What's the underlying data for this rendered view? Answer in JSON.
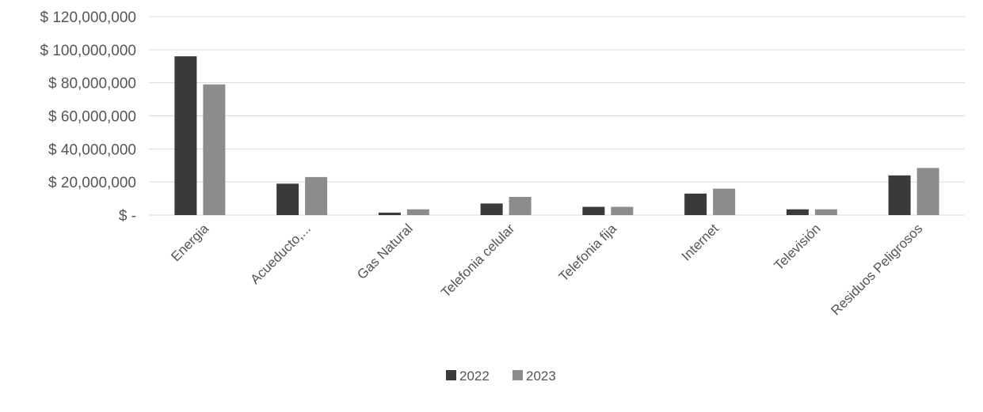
{
  "chart_data": {
    "type": "bar",
    "categories": [
      "Energia",
      "Acueducto,...",
      "Gas Natural",
      "Telefonia celular",
      "Telefonia fija",
      "Internet",
      "Televisión",
      "Residuos Peligrosos"
    ],
    "series": [
      {
        "name": "2022",
        "color": "#3a3a3a",
        "values": [
          96000000,
          19000000,
          1500000,
          7000000,
          5000000,
          13000000,
          3500000,
          24000000
        ]
      },
      {
        "name": "2023",
        "color": "#8c8c8c",
        "values": [
          79000000,
          23000000,
          3500000,
          11000000,
          5000000,
          16000000,
          3500000,
          28500000
        ]
      }
    ],
    "y_tick_labels": [
      "$ -",
      "$ 20,000,000",
      "$ 40,000,000",
      "$ 60,000,000",
      "$ 80,000,000",
      "$ 100,000,000",
      "$ 120,000,000"
    ],
    "ylim": [
      0,
      120000000
    ],
    "grid": true,
    "legend_position": "bottom"
  }
}
